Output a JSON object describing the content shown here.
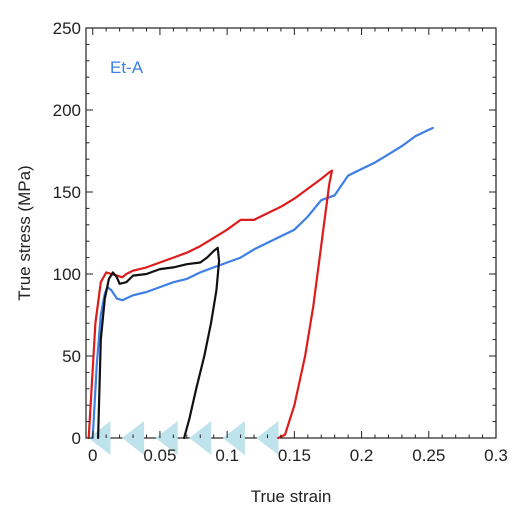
{
  "chart_data": {
    "type": "line",
    "xlabel": "True strain",
    "ylabel": "True stress (MPa)",
    "xlim": [
      -0.005,
      0.3
    ],
    "ylim": [
      0,
      250
    ],
    "x_ticks": [
      0,
      0.05,
      0.1,
      0.15,
      0.2,
      0.25,
      0.3
    ],
    "x_tick_labels": [
      "0",
      "0.05",
      "0.1",
      "0.15",
      "0.2",
      "0.25",
      "0.3"
    ],
    "y_ticks": [
      0,
      50,
      100,
      150,
      200,
      250
    ],
    "y_tick_labels": [
      "0",
      "50",
      "100",
      "150",
      "200",
      "250"
    ],
    "grid": false,
    "annotation": {
      "text": "Et-A",
      "color": "#3d7fe6"
    },
    "series": [
      {
        "color": "#3d7fe6",
        "points": [
          [
            0,
            0
          ],
          [
            0.003,
            45
          ],
          [
            0.006,
            75
          ],
          [
            0.009,
            88
          ],
          [
            0.011,
            92
          ],
          [
            0.014,
            90
          ],
          [
            0.018,
            85
          ],
          [
            0.022,
            84
          ],
          [
            0.03,
            87
          ],
          [
            0.04,
            89
          ],
          [
            0.05,
            92
          ],
          [
            0.06,
            95
          ],
          [
            0.07,
            97
          ],
          [
            0.08,
            101
          ],
          [
            0.09,
            104
          ],
          [
            0.1,
            107
          ],
          [
            0.11,
            110
          ],
          [
            0.12,
            115
          ],
          [
            0.13,
            119
          ],
          [
            0.14,
            123
          ],
          [
            0.15,
            127
          ],
          [
            0.16,
            135
          ],
          [
            0.17,
            145
          ],
          [
            0.18,
            148
          ],
          [
            0.19,
            160
          ],
          [
            0.2,
            164
          ],
          [
            0.21,
            168
          ],
          [
            0.22,
            173
          ],
          [
            0.23,
            178
          ],
          [
            0.24,
            184
          ],
          [
            0.25,
            188
          ],
          [
            0.253,
            189
          ]
        ]
      },
      {
        "color": "#dd1c1c",
        "points": [
          [
            -0.003,
            0
          ],
          [
            0.002,
            70
          ],
          [
            0.006,
            95
          ],
          [
            0.01,
            101
          ],
          [
            0.014,
            100
          ],
          [
            0.018,
            99
          ],
          [
            0.022,
            98
          ],
          [
            0.025,
            100
          ],
          [
            0.03,
            102
          ],
          [
            0.04,
            104
          ],
          [
            0.05,
            107
          ],
          [
            0.06,
            110
          ],
          [
            0.07,
            113
          ],
          [
            0.08,
            117
          ],
          [
            0.09,
            122
          ],
          [
            0.1,
            127
          ],
          [
            0.11,
            133
          ],
          [
            0.12,
            133
          ],
          [
            0.13,
            137
          ],
          [
            0.14,
            141
          ],
          [
            0.15,
            146
          ],
          [
            0.16,
            152
          ],
          [
            0.17,
            158
          ],
          [
            0.176,
            162
          ],
          [
            0.178,
            163
          ],
          [
            0.176,
            155
          ],
          [
            0.172,
            130
          ],
          [
            0.168,
            105
          ],
          [
            0.164,
            80
          ],
          [
            0.158,
            50
          ],
          [
            0.15,
            20
          ],
          [
            0.143,
            2
          ],
          [
            0.138,
            0
          ]
        ]
      },
      {
        "color": "#111111",
        "points": [
          [
            0.004,
            0
          ],
          [
            0.006,
            60
          ],
          [
            0.009,
            85
          ],
          [
            0.012,
            97
          ],
          [
            0.015,
            101
          ],
          [
            0.018,
            98
          ],
          [
            0.02,
            94
          ],
          [
            0.025,
            95
          ],
          [
            0.03,
            99
          ],
          [
            0.04,
            100
          ],
          [
            0.05,
            103
          ],
          [
            0.06,
            104
          ],
          [
            0.07,
            106
          ],
          [
            0.08,
            107
          ],
          [
            0.085,
            110
          ],
          [
            0.09,
            114
          ],
          [
            0.093,
            116
          ],
          [
            0.094,
            108
          ],
          [
            0.092,
            90
          ],
          [
            0.088,
            70
          ],
          [
            0.083,
            50
          ],
          [
            0.077,
            30
          ],
          [
            0.072,
            12
          ],
          [
            0.068,
            0
          ]
        ]
      }
    ],
    "markers": {
      "shape": "left-pointing-triangle",
      "color": "#bfe3ec",
      "y": 0,
      "x": [
        0.005,
        0.03,
        0.055,
        0.08,
        0.105,
        0.13
      ]
    }
  }
}
